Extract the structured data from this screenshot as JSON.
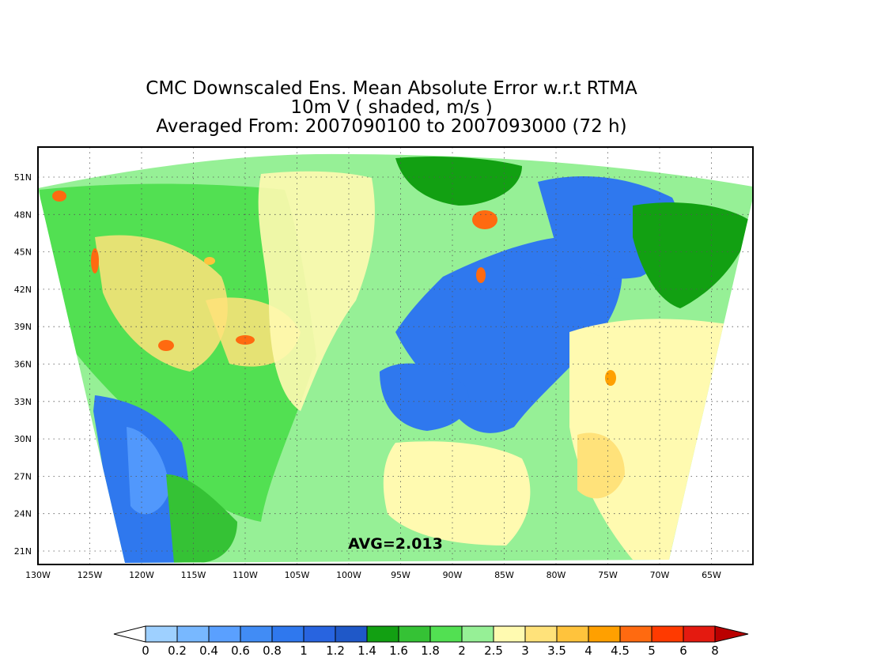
{
  "title": {
    "line1": "CMC Downscaled Ens. Mean Absolute Error w.r.t RTMA",
    "line2": "10m V ( shaded, m/s )",
    "line3": "Averaged From: 2007090100 to 2007093000 (72 h)"
  },
  "avg_label": "AVG=2.013",
  "map": {
    "lon_ticks": [
      "130W",
      "125W",
      "120W",
      "115W",
      "110W",
      "105W",
      "100W",
      "95W",
      "90W",
      "85W",
      "80W",
      "75W",
      "70W",
      "65W"
    ],
    "lat_ticks": [
      "51N",
      "48N",
      "45N",
      "42N",
      "39N",
      "36N",
      "33N",
      "30N",
      "27N",
      "24N",
      "21N"
    ]
  },
  "colorbar": {
    "labels": [
      "0",
      "0.2",
      "0.4",
      "0.6",
      "0.8",
      "1",
      "1.2",
      "1.4",
      "1.6",
      "1.8",
      "2",
      "2.5",
      "3",
      "3.5",
      "4",
      "4.5",
      "5",
      "6",
      "8"
    ],
    "colors": [
      "#9ed0ff",
      "#78b8ff",
      "#5aa0ff",
      "#418cf5",
      "#2f78ee",
      "#2864e0",
      "#1f58c8",
      "#12a012",
      "#35c235",
      "#52e052",
      "#96f096",
      "#fffab0",
      "#ffe27a",
      "#ffc33c",
      "#ffa000",
      "#ff6a10",
      "#ff3a00",
      "#e41a10",
      "#ba0000"
    ],
    "under_color": "#ffffff",
    "over_color": "#ba0000"
  }
}
